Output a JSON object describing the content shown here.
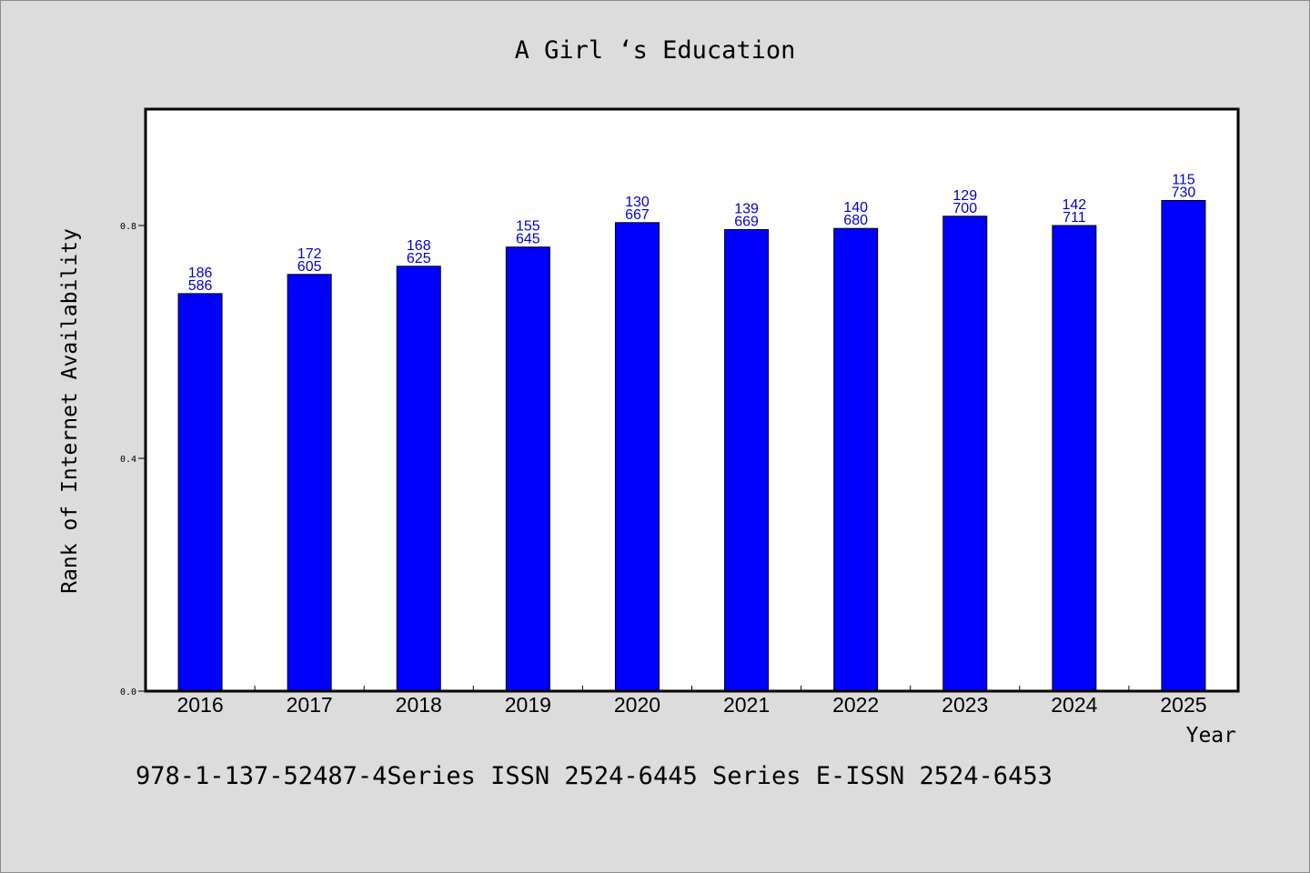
{
  "chart_data": {
    "type": "bar",
    "title": "A Girl ‘s Education",
    "xlabel": "Year",
    "ylabel": "Rank of Internet Availability",
    "categories": [
      "2016",
      "2017",
      "2018",
      "2019",
      "2020",
      "2021",
      "2022",
      "2023",
      "2024",
      "2025"
    ],
    "values": [
      0.683,
      0.716,
      0.73,
      0.763,
      0.805,
      0.793,
      0.795,
      0.816,
      0.8,
      0.843
    ],
    "bar_labels": [
      [
        "186",
        "586"
      ],
      [
        "172",
        "605"
      ],
      [
        "168",
        "625"
      ],
      [
        "155",
        "645"
      ],
      [
        "130",
        "667"
      ],
      [
        "139",
        "669"
      ],
      [
        "140",
        "680"
      ],
      [
        "129",
        "700"
      ],
      [
        "142",
        "711"
      ],
      [
        "115",
        "730"
      ]
    ],
    "yticks": [
      "0.0",
      "0.4",
      "0.8"
    ],
    "ytick_values": [
      0.0,
      0.4,
      0.8
    ],
    "ylim": [
      0,
      1.0
    ],
    "grid": false,
    "legend": null,
    "colors": {
      "bar": "#0000ff",
      "bar_label": "#0000cc",
      "axis": "#000000",
      "background": "#dcdcdc",
      "plot_background": "#ffffff"
    }
  },
  "footer": "978-1-137-52487-4Series ISSN 2524-6445 Series E-ISSN 2524-6453"
}
